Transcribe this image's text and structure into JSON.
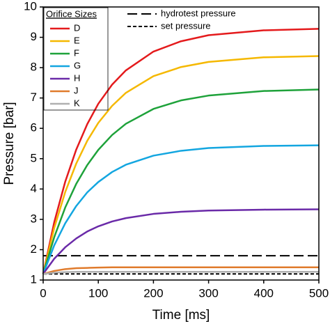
{
  "chart_data": {
    "type": "line",
    "x_label": "Time [ms]",
    "y_label": "Pressure [bar]",
    "legend_title": "Orifice Sizes",
    "x": [
      0,
      20,
      40,
      60,
      80,
      100,
      125,
      150,
      200,
      250,
      300,
      400,
      500
    ],
    "series": [
      {
        "name": "D",
        "color": "#e41a1c",
        "values": [
          1.2,
          2.9,
          4.24,
          5.3,
          6.14,
          6.81,
          7.44,
          7.91,
          8.53,
          8.87,
          9.07,
          9.23,
          9.28
        ]
      },
      {
        "name": "E",
        "color": "#f5b800",
        "values": [
          1.2,
          2.71,
          3.9,
          4.84,
          5.59,
          6.18,
          6.74,
          7.17,
          7.72,
          8.02,
          8.19,
          8.34,
          8.38
        ]
      },
      {
        "name": "F",
        "color": "#1ea23a",
        "values": [
          1.2,
          2.41,
          3.39,
          4.17,
          4.79,
          5.29,
          5.78,
          6.15,
          6.64,
          6.92,
          7.08,
          7.23,
          7.28
        ]
      },
      {
        "name": "G",
        "color": "#13a6e0",
        "values": [
          1.2,
          2.14,
          2.87,
          3.44,
          3.89,
          4.23,
          4.56,
          4.8,
          5.1,
          5.26,
          5.35,
          5.42,
          5.44
        ]
      },
      {
        "name": "H",
        "color": "#6a2aa8",
        "values": [
          1.2,
          1.7,
          2.08,
          2.37,
          2.6,
          2.77,
          2.93,
          3.04,
          3.18,
          3.25,
          3.29,
          3.32,
          3.33
        ]
      },
      {
        "name": "J",
        "color": "#e07b2c",
        "values": [
          1.2,
          1.3,
          1.36,
          1.39,
          1.4,
          1.41,
          1.42,
          1.42,
          1.42,
          1.42,
          1.42,
          1.42,
          1.42
        ]
      },
      {
        "name": "K",
        "color": "#b0b0b0",
        "values": [
          1.2,
          1.24,
          1.26,
          1.27,
          1.27,
          1.27,
          1.27,
          1.27,
          1.27,
          1.27,
          1.27,
          1.27,
          1.27
        ]
      }
    ],
    "reference_lines": [
      {
        "name": "hydrotest pressure",
        "value": 1.8,
        "dash": "14 6"
      },
      {
        "name": "set pressure",
        "value": 1.2,
        "dash": "5 3"
      }
    ],
    "xlim": [
      0,
      500
    ],
    "xticks": [
      0,
      100,
      200,
      300,
      400,
      500
    ],
    "ylim": [
      1,
      10
    ],
    "yticks": [
      1,
      2,
      3,
      4,
      5,
      6,
      7,
      8,
      9,
      10
    ]
  }
}
